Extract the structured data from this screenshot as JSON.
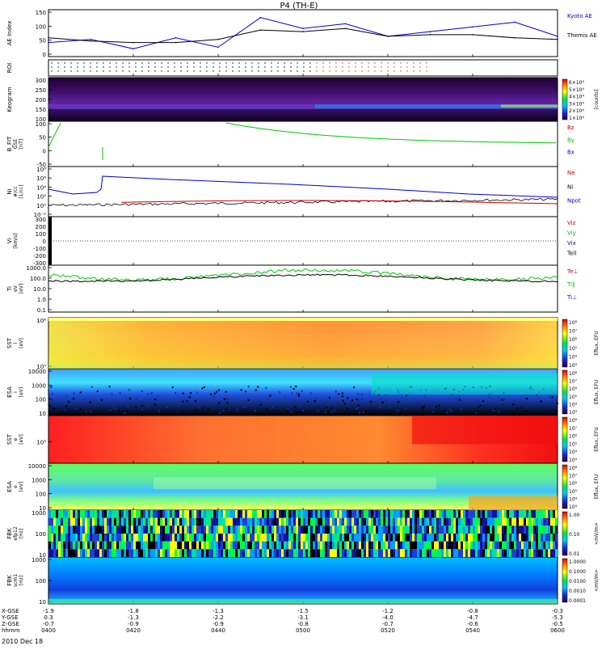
{
  "title": "P4 (TH-E)",
  "date_label": "2010 Dec 18",
  "x_axis": {
    "rows": [
      {
        "label": "X-GSE",
        "values": [
          "-1.9",
          "-1.8",
          "-1.3",
          "-1.5",
          "-1.2",
          "-0.8",
          "-0.3"
        ]
      },
      {
        "label": "Y-GSE",
        "values": [
          "0.3",
          "-1.3",
          "-2.2",
          "-3.1",
          "-4.0",
          "-4.7",
          "-5.3"
        ]
      },
      {
        "label": "Z-GSE",
        "values": [
          "-0.7",
          "-0.9",
          "-0.9",
          "-0.8",
          "-0.7",
          "-0.6",
          "-0.5"
        ]
      },
      {
        "label": "hhmm",
        "values": [
          "0400",
          "0420",
          "0440",
          "0500",
          "0520",
          "0540",
          "0600"
        ]
      }
    ]
  },
  "panels": [
    {
      "key": "ae",
      "ylabel": "AE Index",
      "yticks": [
        "150",
        "100",
        "50",
        "0"
      ],
      "legend": [
        {
          "text": "Kyoto AE",
          "color": "#0000c8"
        },
        {
          "text": "Themis AE",
          "color": "#000000"
        }
      ]
    },
    {
      "key": "roi",
      "ylabel": "ROI",
      "yticks": []
    },
    {
      "key": "keogram",
      "ylabel": "Keogram",
      "yticks": [
        "300",
        "250",
        "200",
        "150",
        "100"
      ],
      "colorbar": {
        "ticks": [
          "6×10⁴",
          "5×10⁴",
          "4×10⁴",
          "3×10⁴",
          "2×10⁴",
          "1×10⁴"
        ],
        "unit": "[counts]"
      }
    },
    {
      "key": "bfit",
      "ylabel": "B_FIT",
      "ylabel2": "GSE",
      "ylabel3": "[nT]",
      "yticks": [
        "100",
        "50",
        "0",
        "-50"
      ],
      "legend": [
        {
          "text": "Bz",
          "color": "#c80000"
        },
        {
          "text": "By",
          "color": "#00b400"
        },
        {
          "text": "Bx",
          "color": "#0000c8"
        }
      ]
    },
    {
      "key": "ni",
      "ylabel": "Ni",
      "ylabel2": "#/cc",
      "ylabel3": "[1/cc]",
      "yticks": [
        "10⁸",
        "10⁶",
        "10⁴",
        "10²",
        "10⁰",
        "10⁻²"
      ],
      "legend": [
        {
          "text": "Ne",
          "color": "#c80000"
        },
        {
          "text": "Ni",
          "color": "#000000"
        },
        {
          "text": "Npot",
          "color": "#0000c8"
        }
      ]
    },
    {
      "key": "vi",
      "ylabel": "Vi",
      "ylabel2": "[km/s]",
      "yticks": [
        "300",
        "200",
        "100",
        "0",
        "-100",
        "-200",
        "-300"
      ],
      "legend": [
        {
          "text": "Viz",
          "color": "#c80000"
        },
        {
          "text": "Viy",
          "color": "#00b400"
        },
        {
          "text": "Vix",
          "color": "#0000c8"
        },
        {
          "text": "Tell",
          "color": "#000000"
        }
      ]
    },
    {
      "key": "ti",
      "ylabel": "Ti",
      "ylabel2": "eV",
      "ylabel3": "[eV]",
      "yticks": [
        "1000.0",
        "100.0",
        "10.0",
        "1.0",
        "0.1"
      ],
      "legend": [
        {
          "text": "Te⊥",
          "color": "#c80000"
        },
        {
          "text": "Ti∥",
          "color": "#00b400"
        },
        {
          "text": "Ti⊥",
          "color": "#0000c8"
        }
      ]
    },
    {
      "key": "sst_i",
      "ylabel": "SST",
      "ylabel2": "i",
      "ylabel3": "[eV]",
      "yticks": [
        "10⁶",
        "10⁵"
      ],
      "colorbar": {
        "ticks": [
          "10⁸",
          "10⁷",
          "10⁶",
          "10⁵",
          "10⁴",
          "10³"
        ],
        "unit": "Eflux, EFU"
      }
    },
    {
      "key": "esa_i",
      "ylabel": "ESA",
      "ylabel2": "i",
      "ylabel3": "[eV]",
      "yticks": [
        "10000",
        "1000",
        "100",
        "10"
      ],
      "colorbar": {
        "ticks": [
          "10⁸",
          "10⁷",
          "10⁶",
          "10⁵",
          "10⁴",
          "10³"
        ],
        "unit": "Eflux, EFU"
      }
    },
    {
      "key": "sst_e",
      "ylabel": "SST",
      "ylabel2": "e",
      "ylabel3": "[eV]",
      "yticks": [
        "10⁵"
      ],
      "colorbar": {
        "ticks": [
          "10⁸",
          "10⁷",
          "10⁶",
          "10⁵",
          "10⁴",
          "10³"
        ],
        "unit": "Eflux, EFU"
      }
    },
    {
      "key": "esa_e",
      "ylabel": "ESA",
      "ylabel2": "e",
      "ylabel3": "[eV]",
      "yticks": [
        "10000",
        "1000",
        "100",
        "10"
      ],
      "colorbar": {
        "ticks": [
          "10⁸",
          "10⁷",
          "10⁶",
          "10⁵",
          "10⁴",
          "10³"
        ],
        "unit": "Eflux, EFU"
      }
    },
    {
      "key": "fbk_e",
      "ylabel": "FBK",
      "ylabel2": "efp12",
      "ylabel3": "[Hz]",
      "yticks": [
        "1000",
        "100",
        "10"
      ],
      "colorbar": {
        "ticks": [
          "1.00",
          "0.10",
          "0.01"
        ],
        "unit": "<mV/m>"
      }
    },
    {
      "key": "fbk_b",
      "ylabel": "FBK",
      "ylabel2": "scm1",
      "ylabel3": "[Hz]",
      "yticks": [
        "1000",
        "100",
        "10"
      ],
      "colorbar": {
        "ticks": [
          "1.0000",
          "0.1000",
          "0.0100",
          "0.0010",
          "0.0001"
        ],
        "unit": "<mV/m>"
      }
    }
  ],
  "chart_data": {
    "type": "line",
    "title": "P4 (TH-E)",
    "x": [
      "0400",
      "0410",
      "0420",
      "0430",
      "0440",
      "0450",
      "0500",
      "0510",
      "0520",
      "0530",
      "0540",
      "0550",
      "0600"
    ],
    "xlabel": "hhmm",
    "series": [
      {
        "name": "Kyoto AE",
        "values": [
          45,
          55,
          25,
          60,
          30,
          125,
          90,
          105,
          65,
          80,
          95,
          110,
          65
        ]
      },
      {
        "name": "Themis AE",
        "values": [
          60,
          50,
          45,
          45,
          55,
          85,
          80,
          90,
          65,
          70,
          70,
          60,
          55
        ]
      }
    ],
    "ylabel": "AE Index",
    "ylim": [
      0,
      150
    ],
    "colors": {
      "kyoto": "#0000c8",
      "themis": "#000000",
      "bfit": "#00c800",
      "ni": "#000000",
      "ne": "#c80000",
      "npot": "#0000c8",
      "ti": "#00c800",
      "te": "#000000"
    }
  }
}
